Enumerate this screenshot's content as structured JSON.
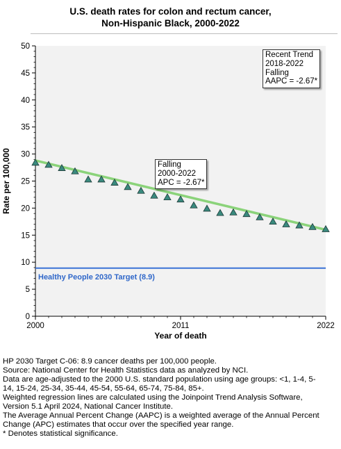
{
  "chart_data": {
    "type": "scatter",
    "title_lines": [
      "U.S. death rates for colon and rectum cancer,",
      "Non-Hispanic Black,  2000-2022"
    ],
    "xlabel": "Year of death",
    "ylabel": "Rate per 100,000",
    "xlim": [
      2000,
      2022
    ],
    "ylim": [
      0,
      50
    ],
    "x_ticks": [
      "2000",
      "2011",
      "2022"
    ],
    "y_ticks": [
      "0",
      "5",
      "10",
      "15",
      "20",
      "25",
      "30",
      "35",
      "40",
      "45",
      "50"
    ],
    "grid": false,
    "observed": {
      "x": [
        2000,
        2001,
        2002,
        2003,
        2004,
        2005,
        2006,
        2007,
        2008,
        2009,
        2010,
        2011,
        2012,
        2013,
        2014,
        2015,
        2016,
        2017,
        2018,
        2019,
        2020,
        2021,
        2022
      ],
      "y": [
        28.4,
        28.0,
        27.4,
        26.8,
        25.3,
        25.3,
        24.7,
        23.9,
        23.2,
        22.3,
        22.0,
        21.6,
        20.5,
        19.9,
        19.1,
        19.2,
        18.9,
        18.3,
        17.5,
        17.0,
        16.8,
        16.5,
        16.1
      ]
    },
    "trend": {
      "x": [
        2000,
        2022
      ],
      "y": [
        28.8,
        16.0
      ]
    },
    "target": {
      "label": "Healthy People 2030 Target (8.9)",
      "value": 8.9
    },
    "annotations": [
      {
        "lines": [
          "Falling",
          "2000-2022",
          "APC = -2.67*"
        ]
      },
      {
        "lines": [
          "Recent Trend",
          "2018-2022",
          "Falling",
          "AAPC = -2.67*"
        ]
      }
    ],
    "colors": {
      "background": "#f2f2f2",
      "marker_fill": "#3a8a7e",
      "marker_stroke": "#1f3b38",
      "trend_line": "#8bd37a",
      "target_line": "#3a72d6",
      "target_text": "#2f67c9"
    }
  },
  "footnotes": [
    "HP 2030 Target C-06: 8.9 cancer deaths per 100,000 people.",
    "Source: National Center for Health Statistics data as analyzed by NCI.",
    "Data are age-adjusted to the 2000 U.S. standard population using age groups: <1, 1-4, 5-",
    "14, 15-24, 25-34, 35-44, 45-54, 55-64, 65-74, 75-84, 85+.",
    "Weighted regression lines are calculated using the Joinpoint Trend Analysis Software,",
    "Version 5.1 April 2024, National Cancer Institute.",
    "The Average Annual Percent Change (AAPC) is a weighted average of the Annual Percent",
    "Change (APC) estimates that occur over the specified year range.",
    "* Denotes statistical significance."
  ]
}
